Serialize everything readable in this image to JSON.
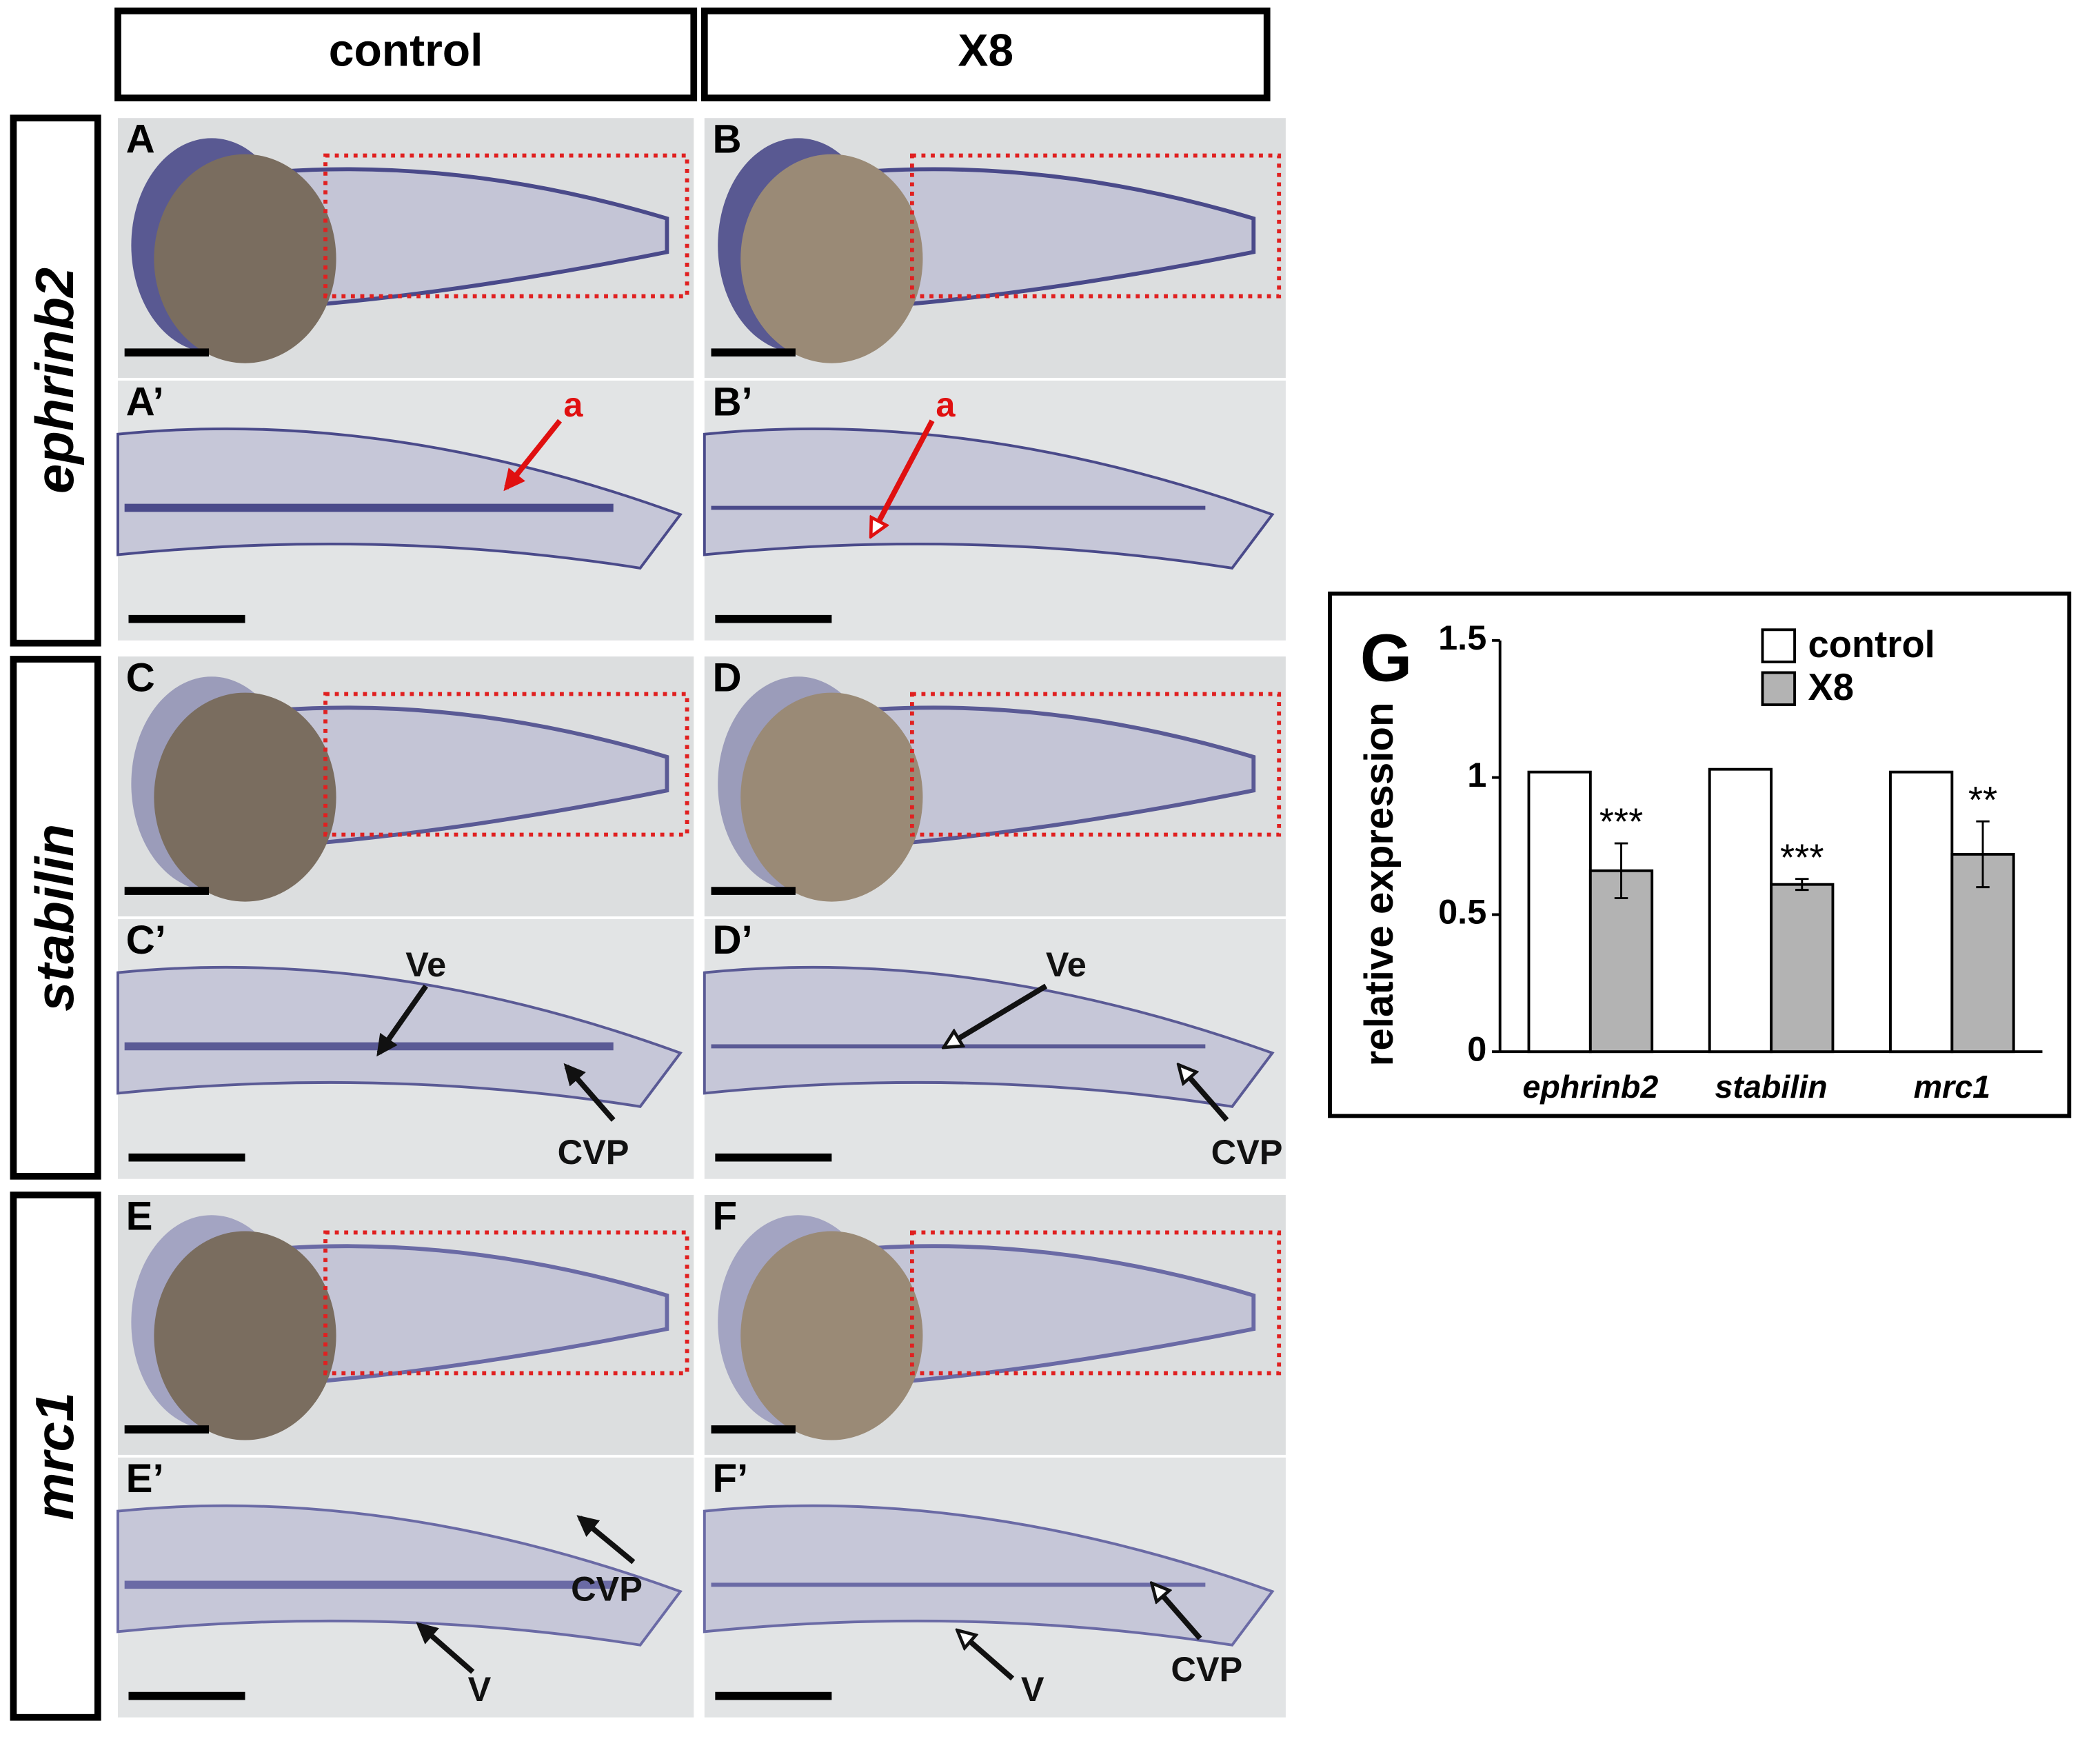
{
  "figure": {
    "columns": [
      "control",
      "X8"
    ],
    "rows": [
      "ephrinb2",
      "stabilin",
      "mrc1"
    ],
    "panels": [
      {
        "label": "A"
      },
      {
        "label": "B"
      },
      {
        "label": "A’",
        "annotations": [
          "a"
        ]
      },
      {
        "label": "B’",
        "annotations": [
          "a"
        ]
      },
      {
        "label": "C"
      },
      {
        "label": "D"
      },
      {
        "label": "C’",
        "annotations": [
          "Ve",
          "CVP"
        ]
      },
      {
        "label": "D’",
        "annotations": [
          "Ve",
          "CVP"
        ]
      },
      {
        "label": "E"
      },
      {
        "label": "F"
      },
      {
        "label": "E’",
        "annotations": [
          "CVP",
          "V"
        ]
      },
      {
        "label": "F’",
        "annotations": [
          "CVP",
          "V"
        ]
      }
    ]
  },
  "chart_data": {
    "type": "bar",
    "panel_label": "G",
    "ylabel": "relative expression",
    "categories": [
      "ephrinb2",
      "stabilin",
      "mrc1"
    ],
    "series": [
      {
        "name": "control",
        "color": "#ffffff",
        "values": [
          1.02,
          1.03,
          1.02
        ]
      },
      {
        "name": "X8",
        "color": "#b3b3b3",
        "values": [
          0.66,
          0.61,
          0.72
        ],
        "errors": [
          0.1,
          0.02,
          0.12
        ]
      }
    ],
    "annotations": [
      "***",
      "***",
      "**"
    ],
    "ylim": [
      0,
      1.5
    ],
    "yticks": [
      0,
      0.5,
      1,
      1.5
    ],
    "legend": "top-right"
  }
}
